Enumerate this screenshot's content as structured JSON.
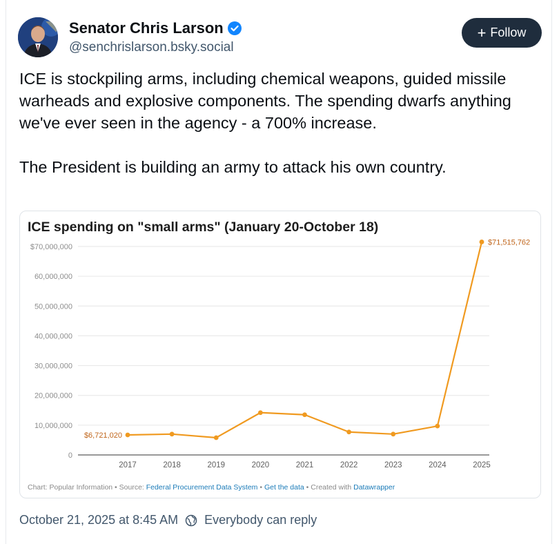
{
  "author": {
    "name": "Senator Chris Larson",
    "handle": "@senchrislarson.bsky.social",
    "verified": true
  },
  "follow_button": {
    "label": "Follow"
  },
  "post": {
    "paragraph1": "ICE is stockpiling arms, including chemical weapons, guided missile warheads and explosive components. The spending dwarfs anything we've ever seen in the agency - a 700% increase.",
    "paragraph2": "The President is building an army to attack his own country."
  },
  "chart_data": {
    "type": "line",
    "title": "ICE spending on \"small arms\" (January 20-October 18)",
    "xlabel": "",
    "ylabel": "",
    "x": [
      "2017",
      "2018",
      "2019",
      "2020",
      "2021",
      "2022",
      "2023",
      "2024",
      "2025"
    ],
    "values": [
      6721020,
      7000000,
      5800000,
      14200000,
      13500000,
      7700000,
      7000000,
      9700000,
      71515762
    ],
    "ylim": [
      0,
      70000000
    ],
    "yticks": [
      0,
      10000000,
      20000000,
      30000000,
      40000000,
      50000000,
      60000000,
      70000000
    ],
    "ytick_labels": [
      "0",
      "10,000,000",
      "20,000,000",
      "30,000,000",
      "40,000,000",
      "50,000,000",
      "60,000,000",
      "$70,000,000"
    ],
    "data_labels": {
      "first": "$6,721,020",
      "last": "$71,515,762"
    },
    "grid": true,
    "line_color": "#f09a20",
    "label_color": "#c0651b",
    "footer": {
      "prefix": "Chart: Popular Information • Source: ",
      "source": "Federal Procurement Data System",
      "sep1": " • ",
      "get_data": "Get the data",
      "sep2": " • Created with ",
      "tool": "Datawrapper"
    }
  },
  "meta": {
    "timestamp": "October 21, 2025 at 8:45 AM",
    "reply_setting": "Everybody can reply"
  },
  "colors": {
    "accent": "#1185fe",
    "follow_bg": "#1f2d3d",
    "muted": "#42576c"
  }
}
